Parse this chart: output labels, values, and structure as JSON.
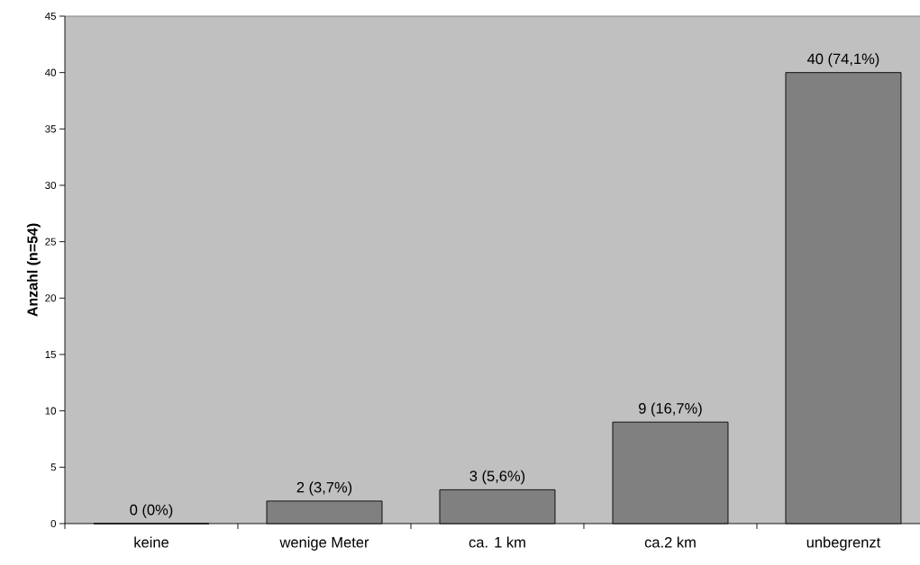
{
  "chart_data": {
    "type": "bar",
    "ylabel": "Anzahl (n=54)",
    "categories": [
      "keine",
      "wenige Meter",
      "ca. 1 km",
      "ca.2 km",
      "unbegrenzt"
    ],
    "values": [
      0,
      2,
      3,
      9,
      40
    ],
    "value_labels": [
      "0 (0%)",
      "2 (3,7%)",
      "3 (5,6%)",
      "9 (16,7%)",
      "40 (74,1%)"
    ],
    "color": "#808080",
    "ylim": [
      0,
      45
    ],
    "yticks": [
      0,
      5,
      10,
      15,
      20,
      25,
      30,
      35,
      40,
      45
    ]
  }
}
